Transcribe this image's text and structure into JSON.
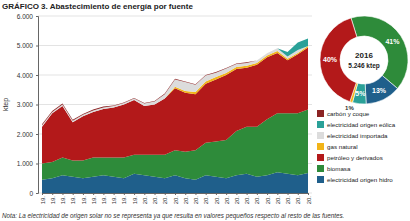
{
  "chart_data": [
    {
      "type": "area",
      "title": "GRÁFICO 3. Abastecimiento de energía por fuente",
      "y_label": "ktep",
      "annotation": "Nota: La electricidad de origen solar no se representa ya que resulta en valores pequeños respecto al resto de las fuentes.",
      "stacked": true,
      "grid": true,
      "legend": "right",
      "categories": [
        "19.",
        "19.",
        "19.",
        "19.",
        "19.",
        "19.",
        "19.",
        "19.",
        "19.",
        "19.",
        "20.",
        "20.",
        "20.",
        "20.",
        "20.",
        "20.",
        "20.",
        "20.",
        "20.",
        "20.",
        "20.",
        "20.",
        "20.",
        "20.",
        "20.",
        "20.",
        "20."
      ],
      "ylim": [
        0,
        6000
      ],
      "yticks": [
        0,
        {
          "value": 1000,
          "label": "1.000"
        },
        {
          "value": 2000,
          "label": "2.000"
        },
        {
          "value": 3000,
          "label": "3.000"
        },
        {
          "value": 4000,
          "label": "4.000"
        },
        {
          "value": 5000,
          "label": "5.000"
        },
        {
          "value": 6000,
          "label": "6.000"
        }
      ],
      "series": [
        {
          "name": "electricidad origen hidro",
          "color": "#1f5f8b",
          "values": [
            450,
            500,
            600,
            550,
            500,
            550,
            600,
            550,
            500,
            650,
            600,
            550,
            500,
            600,
            500,
            450,
            600,
            550,
            500,
            600,
            650,
            550,
            600,
            700,
            650,
            600,
            680
          ]
        },
        {
          "name": "biomasa",
          "color": "#2e8b3a",
          "values": [
            550,
            550,
            600,
            550,
            600,
            650,
            600,
            650,
            700,
            650,
            700,
            750,
            800,
            850,
            900,
            1000,
            1100,
            1200,
            1300,
            1500,
            1600,
            1700,
            1900,
            2000,
            2050,
            2100,
            2150
          ]
        },
        {
          "name": "petróleo y derivados",
          "color": "#b3191a",
          "values": [
            1250,
            1650,
            1750,
            1300,
            1500,
            1550,
            1650,
            1700,
            1800,
            1850,
            1650,
            1700,
            1900,
            2100,
            2000,
            1900,
            2000,
            2100,
            2200,
            2100,
            2000,
            2100,
            2100,
            2050,
            1800,
            2000,
            2100
          ]
        },
        {
          "name": "gas natural",
          "color": "#f2b418",
          "values": [
            0,
            0,
            0,
            0,
            0,
            0,
            0,
            0,
            0,
            0,
            0,
            0,
            0,
            50,
            60,
            70,
            80,
            80,
            70,
            70,
            60,
            60,
            60,
            60,
            50,
            50,
            50
          ]
        },
        {
          "name": "electricidad importada",
          "color": "#dcdcdc",
          "values": [
            50,
            50,
            50,
            50,
            50,
            50,
            50,
            50,
            50,
            50,
            80,
            100,
            150,
            250,
            300,
            250,
            200,
            150,
            150,
            100,
            100,
            80,
            80,
            100,
            80,
            100,
            0
          ]
        },
        {
          "name": "electricidad origen eólica",
          "color": "#2aa198",
          "values": [
            0,
            0,
            0,
            0,
            0,
            0,
            0,
            0,
            0,
            0,
            0,
            0,
            0,
            0,
            0,
            0,
            0,
            0,
            0,
            0,
            0,
            0,
            0,
            0,
            150,
            250,
            260
          ]
        },
        {
          "name": "carbón y coque",
          "color": "#8b2323",
          "values": [
            30,
            30,
            30,
            30,
            30,
            30,
            30,
            20,
            20,
            20,
            20,
            20,
            20,
            20,
            20,
            20,
            20,
            20,
            20,
            20,
            20,
            0,
            0,
            0,
            0,
            0,
            0
          ]
        }
      ]
    },
    {
      "type": "pie",
      "title": "2016",
      "subtitle": "5.246 ktep",
      "categories": [
        "biomasa",
        "electricidad origen hidro",
        "electricidad origen eólica",
        "gas natural",
        "petróleo y derivados"
      ],
      "values": [
        41,
        13,
        5,
        1,
        40
      ],
      "value_labels": [
        "41%",
        "13%",
        "5%",
        "1%",
        "40%"
      ],
      "colors": [
        "#2e8b3a",
        "#1f5f8b",
        "#2aa198",
        "#f2b418",
        "#b3191a"
      ],
      "data_labels": true
    }
  ]
}
